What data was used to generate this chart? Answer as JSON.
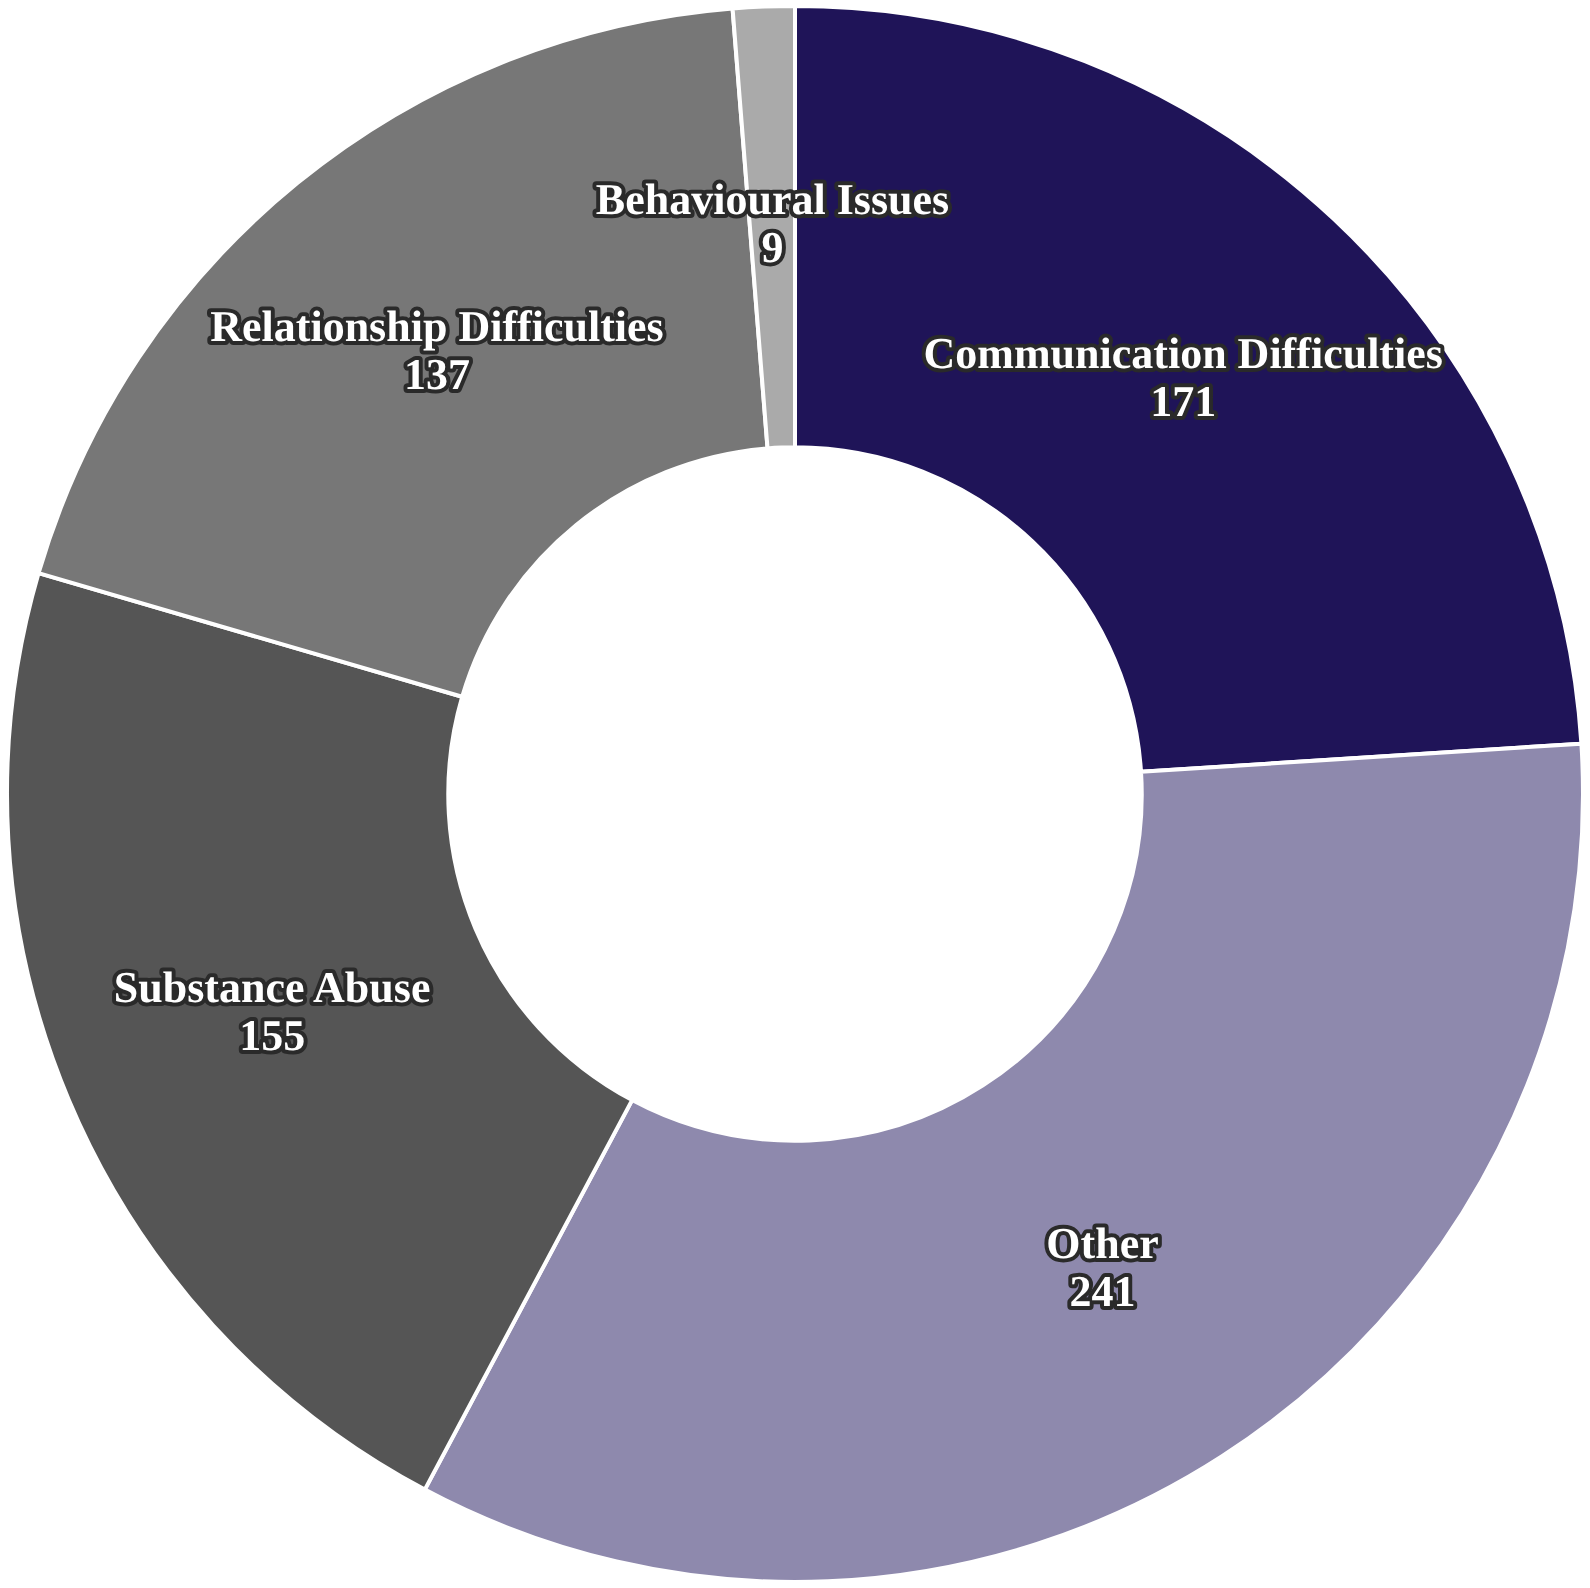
{
  "chart_data": {
    "type": "donut",
    "categories": [
      "Communication Difficulties",
      "Other",
      "Substance Abuse",
      "Relationship Difficulties",
      "Behavioural Issues"
    ],
    "values": [
      171,
      241,
      155,
      137,
      9
    ],
    "colors": [
      "#1f1458",
      "#8e89ad",
      "#555555",
      "#777777",
      "#aaaaaa"
    ],
    "data_labels": true,
    "legend": false
  }
}
